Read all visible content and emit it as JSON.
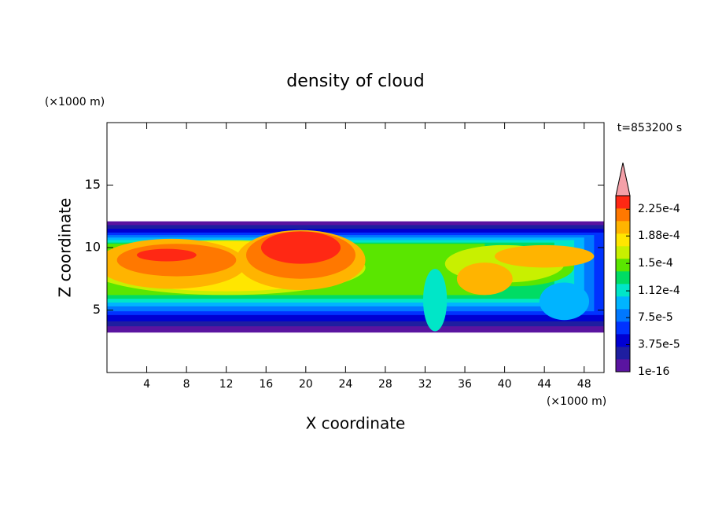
{
  "chart_data": {
    "type": "contour",
    "title": "density of cloud",
    "time_label": "t=853200 s",
    "x_label": "X coordinate",
    "y_label": "Z coordinate",
    "x_unit": "(×1000 m)",
    "y_unit": "(×1000 m)",
    "xlim": [
      0,
      50
    ],
    "xticks": [
      4,
      8,
      12,
      16,
      20,
      24,
      28,
      32,
      36,
      40,
      44,
      48
    ],
    "ylim": [
      0,
      20
    ],
    "yticks": [
      5,
      10,
      15
    ],
    "colorbar": {
      "clim": [
        1e-16,
        0.00024375
      ],
      "ticks": [
        1e-16,
        {
          "value": 3.75e-05,
          "label": "3.75e-5"
        },
        {
          "value": 7.5e-05,
          "label": "7.5e-5"
        },
        {
          "value": 0.000112,
          "label": "1.12e-4"
        },
        {
          "value": 0.00015,
          "label": "1.5e-4"
        },
        {
          "value": 0.000188,
          "label": "1.88e-4"
        },
        {
          "value": 0.000225,
          "label": "2.25e-4"
        }
      ],
      "colors": [
        "#5a14a0",
        "#1e1ea0",
        "#0000d2",
        "#0032ff",
        "#0078ff",
        "#00b4ff",
        "#00e6c8",
        "#00dc64",
        "#5ae600",
        "#c8f000",
        "#ffe600",
        "#ffb400",
        "#ff7800",
        "#ff2814"
      ],
      "extend_color": "#f4a0a8"
    }
  }
}
